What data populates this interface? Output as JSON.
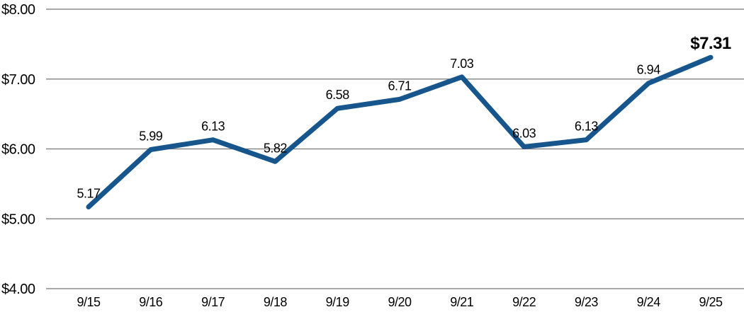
{
  "chart_data": {
    "type": "line",
    "title": "",
    "xlabel": "",
    "ylabel": "",
    "x": [
      "9/15",
      "9/16",
      "9/17",
      "9/18",
      "9/19",
      "9/20",
      "9/21",
      "9/22",
      "9/23",
      "9/24",
      "9/25"
    ],
    "values": [
      5.17,
      5.99,
      6.13,
      5.82,
      6.58,
      6.71,
      7.03,
      6.03,
      6.13,
      6.94,
      7.31
    ],
    "point_labels": [
      "5.17",
      "5.99",
      "6.13",
      "5.82",
      "6.58",
      "6.71",
      "7.03",
      "6.03",
      "6.13",
      "6.94",
      "$7.31"
    ],
    "last_point_emphasized": true,
    "y_ticks": [
      {
        "value": 8,
        "label": "$8.00"
      },
      {
        "value": 7,
        "label": "$7.00"
      },
      {
        "value": 6,
        "label": "$6.00"
      },
      {
        "value": 5,
        "label": "$5.00"
      },
      {
        "value": 4,
        "label": "$4.00"
      }
    ],
    "ylim": [
      4,
      8
    ],
    "grid": "horizontal",
    "legend": "none",
    "colors": {
      "line": "#16568C",
      "gridline": "#757575",
      "text": "#000000",
      "background": "#ffffff"
    }
  }
}
